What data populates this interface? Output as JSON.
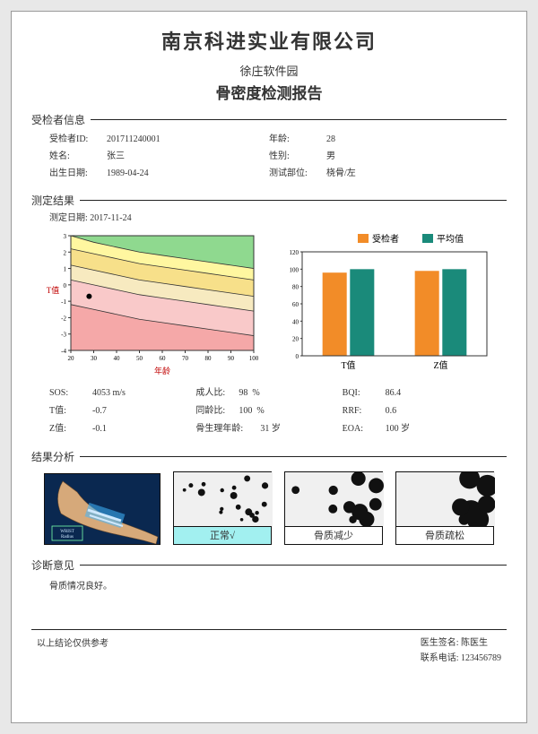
{
  "header": {
    "company": "南京科进实业有限公司",
    "location": "徐庄软件园",
    "report_title": "骨密度检测报告"
  },
  "sections": {
    "info": "受检者信息",
    "result": "测定结果",
    "analysis": "结果分析",
    "diagnosis": "诊断意见"
  },
  "patient": {
    "id_label": "受检者ID:",
    "id": "201711240001",
    "age_label": "年龄:",
    "age": "28",
    "name_label": "姓名:",
    "name": "张三",
    "sex_label": "性别:",
    "sex": "男",
    "birth_label": "出生日期:",
    "birth": "1989-04-24",
    "site_label": "测试部位:",
    "site": "桡骨/左"
  },
  "measure": {
    "date_label": "测定日期:",
    "date": "2017-11-24"
  },
  "line_chart": {
    "xlabel": "年龄",
    "ylabel": "T值",
    "xlim": [
      20,
      100
    ],
    "ylim": [
      -4,
      3
    ],
    "xticks": [
      20,
      30,
      40,
      50,
      60,
      70,
      80,
      90,
      100
    ],
    "yticks": [
      -4,
      -3,
      -2,
      -1,
      0,
      1,
      2,
      3
    ],
    "tick_fontsize": 7,
    "label_fontsize": 9,
    "label_colors": {
      "x": "#c00000",
      "y": "#c00000"
    },
    "bands": [
      {
        "color": "#8fd98f",
        "boundary_y": [
          3,
          2.6,
          2.3,
          2.0,
          1.8,
          1.6,
          1.4,
          1.2,
          1.0
        ]
      },
      {
        "color": "#fff7a0",
        "boundary_y": [
          2.2,
          1.9,
          1.6,
          1.3,
          1.1,
          0.9,
          0.7,
          0.5,
          0.3
        ]
      },
      {
        "color": "#f7e08a",
        "boundary_y": [
          1.2,
          0.9,
          0.6,
          0.3,
          0.1,
          -0.1,
          -0.3,
          -0.5,
          -0.7
        ]
      },
      {
        "color": "#f7eac0",
        "boundary_y": [
          0.3,
          0.0,
          -0.3,
          -0.6,
          -0.8,
          -1.0,
          -1.2,
          -1.4,
          -1.6
        ]
      },
      {
        "color": "#f9c9c9",
        "boundary_y": [
          -1.2,
          -1.5,
          -1.8,
          -2.1,
          -2.3,
          -2.5,
          -2.7,
          -2.9,
          -3.1
        ]
      },
      {
        "color": "#f5a8a8",
        "boundary_y": [
          -4,
          -4,
          -4,
          -4,
          -4,
          -4,
          -4,
          -4,
          -4
        ]
      }
    ],
    "point": {
      "x": 28,
      "y": -0.7,
      "color": "#000000",
      "r": 3
    }
  },
  "bar_chart": {
    "legend": [
      {
        "label": "受检者",
        "color": "#f28c28"
      },
      {
        "label": "平均值",
        "color": "#1a8a7a"
      }
    ],
    "categories": [
      "T值",
      "Z值"
    ],
    "series": {
      "subject": [
        96,
        98
      ],
      "mean": [
        100,
        100
      ]
    },
    "ylim": [
      0,
      120
    ],
    "yticks": [
      0,
      20,
      40,
      60,
      80,
      100,
      120
    ],
    "tick_fontsize": 7,
    "bar_width": 0.35
  },
  "metrics": {
    "sos_label": "SOS:",
    "sos": "4053 m/s",
    "adult_label": "成人比:",
    "adult": "98",
    "adult_unit": "%",
    "bqi_label": "BQI:",
    "bqi": "86.4",
    "t_label": "T值:",
    "t": "-0.7",
    "peer_label": "同龄比:",
    "peer": "100",
    "peer_unit": "%",
    "rrf_label": "RRF:",
    "rrf": "0.6",
    "z_label": "Z值:",
    "z": "-0.1",
    "physio_label": "骨生理年龄:",
    "physio": "31",
    "physio_unit": "岁",
    "eoa_label": "EOA:",
    "eoa": "100",
    "eoa_unit": "岁"
  },
  "analysis": {
    "arm": {
      "background": "#0a2850",
      "skin_color": "#d6a97a",
      "x_color": "#3fb7ff",
      "box_label": "WRIST\nRadius"
    },
    "cats": [
      {
        "label": "正常√",
        "selected": true,
        "dots": 18,
        "dot_size": 3
      },
      {
        "label": "骨质减少",
        "selected": false,
        "dots": 10,
        "dot_size": 7
      },
      {
        "label": "骨质疏松",
        "selected": false,
        "dots": 7,
        "dot_size": 10
      }
    ]
  },
  "diagnosis": {
    "text": "骨质情况良好。"
  },
  "footer": {
    "disclaimer": "以上结论仅供参考",
    "doctor_label": "医生签名:",
    "doctor": "陈医生",
    "phone_label": "联系电话:",
    "phone": "123456789"
  }
}
